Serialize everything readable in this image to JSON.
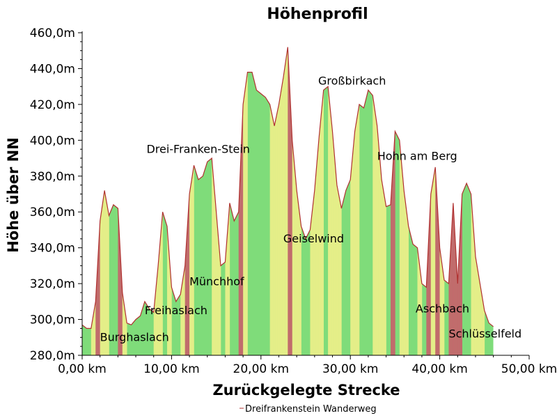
{
  "chart_data": {
    "type": "area",
    "title": "Höhenprofil",
    "xlabel": "Zurückgelegte Strecke",
    "ylabel": "Höhe über NN",
    "xlim": [
      0,
      50
    ],
    "ylim": [
      280,
      460
    ],
    "x_ticks": [
      {
        "value": 0,
        "label": "0,00 km"
      },
      {
        "value": 10,
        "label": "10,00 km"
      },
      {
        "value": 20,
        "label": "20,00 km"
      },
      {
        "value": 30,
        "label": "30,00 km"
      },
      {
        "value": 40,
        "label": "40,00 km"
      },
      {
        "value": 50,
        "label": "50,00 km"
      }
    ],
    "y_ticks": [
      {
        "value": 280,
        "label": "280,0m"
      },
      {
        "value": 300,
        "label": "300,0m"
      },
      {
        "value": 320,
        "label": "320,0m"
      },
      {
        "value": 340,
        "label": "340,0m"
      },
      {
        "value": 360,
        "label": "360,0m"
      },
      {
        "value": 380,
        "label": "380,0m"
      },
      {
        "value": 400,
        "label": "400,0m"
      },
      {
        "value": 420,
        "label": "420,0m"
      },
      {
        "value": 440,
        "label": "440,0m"
      },
      {
        "value": 460,
        "label": "460,0m"
      }
    ],
    "series": [
      {
        "name": "Dreifrankenstein Wanderweg",
        "x": [
          0,
          0.5,
          1.0,
          1.5,
          2.0,
          2.5,
          3.0,
          3.5,
          4.0,
          4.5,
          5.0,
          5.5,
          6.0,
          6.5,
          7.0,
          7.5,
          8.0,
          8.5,
          9.0,
          9.5,
          10.0,
          10.5,
          11.0,
          11.5,
          12.0,
          12.5,
          13.0,
          13.5,
          14.0,
          14.5,
          15.0,
          15.5,
          16.0,
          16.5,
          17.0,
          17.5,
          18.0,
          18.5,
          19.0,
          19.5,
          20.0,
          20.5,
          21.0,
          21.5,
          22.0,
          22.5,
          23.0,
          23.5,
          24.0,
          24.5,
          25.0,
          25.5,
          26.0,
          26.5,
          27.0,
          27.5,
          28.0,
          28.5,
          29.0,
          29.5,
          30.0,
          30.5,
          31.0,
          31.5,
          32.0,
          32.5,
          33.0,
          33.5,
          34.0,
          34.5,
          35.0,
          35.5,
          36.0,
          36.5,
          37.0,
          37.5,
          38.0,
          38.5,
          39.0,
          39.5,
          40.0,
          40.5,
          41.0,
          41.5,
          42.0,
          42.5,
          43.0,
          43.5,
          44.0,
          44.5,
          45.0,
          45.5,
          46.0
        ],
        "values": [
          297,
          295,
          295,
          310,
          355,
          372,
          358,
          364,
          362,
          315,
          298,
          297,
          300,
          302,
          310,
          306,
          304,
          330,
          360,
          352,
          318,
          310,
          314,
          330,
          370,
          386,
          378,
          380,
          388,
          390,
          360,
          330,
          332,
          365,
          355,
          360,
          420,
          438,
          438,
          428,
          426,
          424,
          420,
          408,
          420,
          435,
          452,
          400,
          372,
          352,
          345,
          350,
          372,
          402,
          428,
          430,
          405,
          375,
          362,
          372,
          378,
          405,
          420,
          418,
          428,
          425,
          408,
          378,
          363,
          364,
          405,
          400,
          372,
          352,
          342,
          340,
          320,
          318,
          370,
          385,
          340,
          322,
          320,
          365,
          320,
          370,
          376,
          370,
          335,
          320,
          305,
          298,
          296
        ]
      }
    ],
    "annotations": [
      {
        "text": "Burghaslach",
        "x": 2.0,
        "y": 288
      },
      {
        "text": "Freihaslach",
        "x": 7.0,
        "y": 303
      },
      {
        "text": "Drei-Franken-Stein",
        "x": 7.2,
        "y": 393
      },
      {
        "text": "Münchhof",
        "x": 12.0,
        "y": 319
      },
      {
        "text": "Geiselwind",
        "x": 22.5,
        "y": 343
      },
      {
        "text": "Großbirkach",
        "x": 26.4,
        "y": 431
      },
      {
        "text": "Hohn am Berg",
        "x": 33.0,
        "y": 389
      },
      {
        "text": "Aschbach",
        "x": 37.3,
        "y": 304
      },
      {
        "text": "Schlüsselfeld",
        "x": 41.0,
        "y": 290
      }
    ],
    "legend": {
      "position": "bottom-center",
      "text": "Dreifrankenstein Wanderweg"
    },
    "fill_colors": {
      "green": "#7fdc7a",
      "yellow": "#eef08a",
      "red": "#c8606a"
    },
    "line_color": "#b03030"
  }
}
